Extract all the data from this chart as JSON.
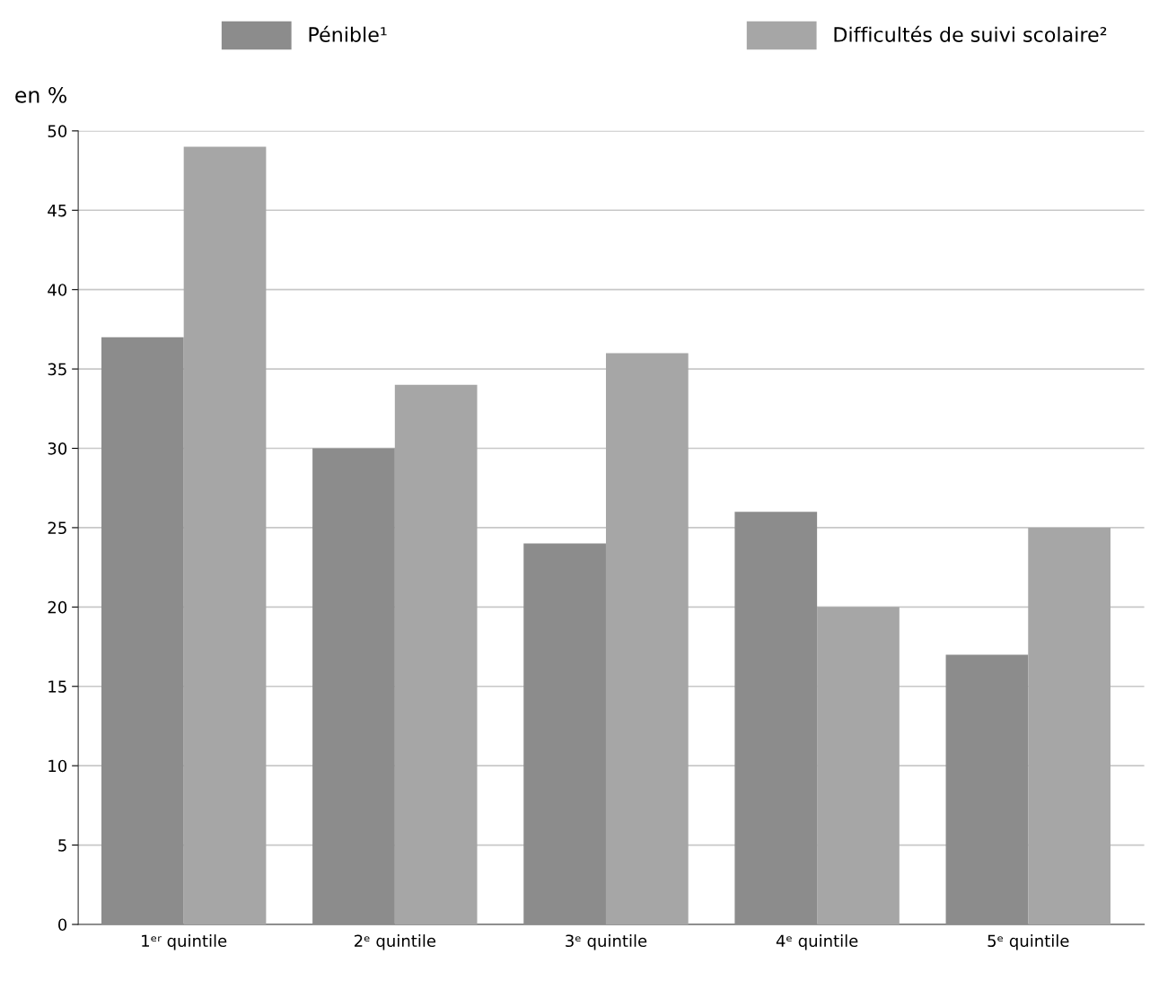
{
  "chart_data": {
    "type": "bar",
    "ylabel": "en %",
    "categories": [
      "1ᵉʳ quintile",
      "2ᵉ quintile",
      "3ᵉ quintile",
      "4ᵉ quintile",
      "5ᵉ quintile"
    ],
    "series": [
      {
        "name": "Pénible¹",
        "color": "#8c8c8c",
        "values": [
          37,
          30,
          24,
          26,
          17
        ]
      },
      {
        "name": "Difficultés de suivi scolaire²",
        "color": "#a6a6a6",
        "values": [
          49,
          34,
          36,
          20,
          25
        ]
      }
    ],
    "ylim": [
      0,
      50
    ],
    "yticks": [
      0,
      5,
      10,
      15,
      20,
      25,
      30,
      35,
      40,
      45,
      50
    ],
    "grid": "y",
    "legend": "top"
  }
}
